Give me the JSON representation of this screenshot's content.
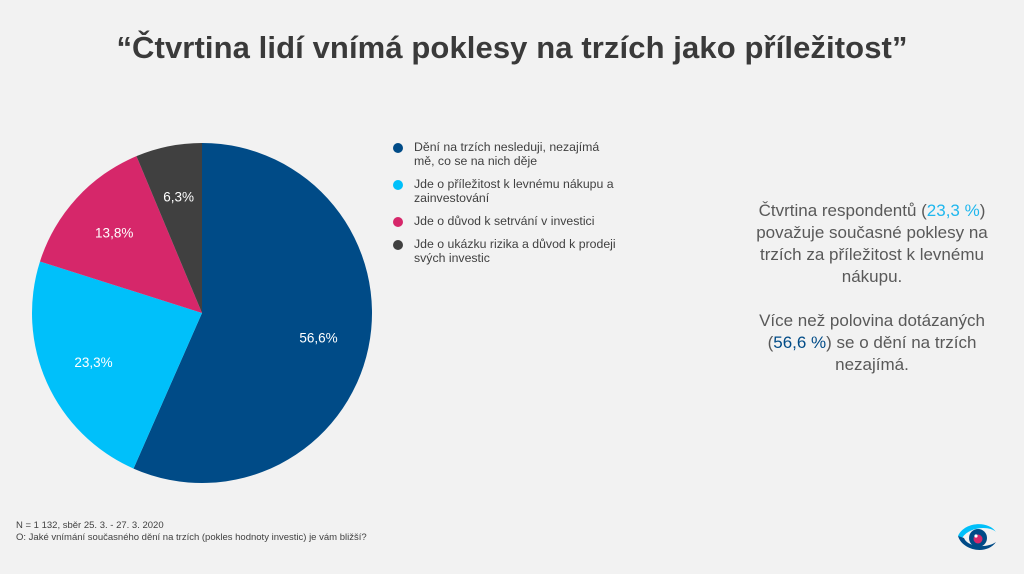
{
  "title": "“Čtvrtina lidí vnímá poklesy na trzích jako příležitost”",
  "chart_data": {
    "type": "pie",
    "start_angle_deg": 0,
    "direction": "clockwise",
    "slices": [
      {
        "label": "Dění na trzích nesleduji, nezajímá mě, co se na nich děje",
        "value": 56.6,
        "display": "56,6%",
        "color": "#004b87"
      },
      {
        "label": "Jde o příležitost k levnému nákupu a zainvestování",
        "value": 23.3,
        "display": "23,3%",
        "color": "#00c0fa"
      },
      {
        "label": "Jde o důvod k setrvání v investici",
        "value": 13.8,
        "display": "13,8%",
        "color": "#d6276a"
      },
      {
        "label": "Jde o ukázku rizika a důvod k prodeji svých investic",
        "value": 6.3,
        "display": "6,3%",
        "color": "#404040"
      }
    ],
    "legend_position": "right"
  },
  "side_text": {
    "p1_a": "Čtvrtina respondentů (",
    "p1_hl": "23,3 %",
    "p1_b": ") považuje současné poklesy na trzích za příležitost k levnému nákupu.",
    "p2_a": "Více než polovina dotázaných (",
    "p2_hl": "56,6 %",
    "p2_b": ") se o dění na trzích nezajímá."
  },
  "footnote": {
    "line1": "N = 1 132, sběr 25. 3. - 27. 3. 2020",
    "line2": "O: Jaké vnímání současného dění na trzích (pokles hodnoty investic) je vám bližší?"
  },
  "logo": {
    "icon": "eye-logo-icon",
    "colors": [
      "#004b87",
      "#00c0fa",
      "#d6276a"
    ]
  }
}
